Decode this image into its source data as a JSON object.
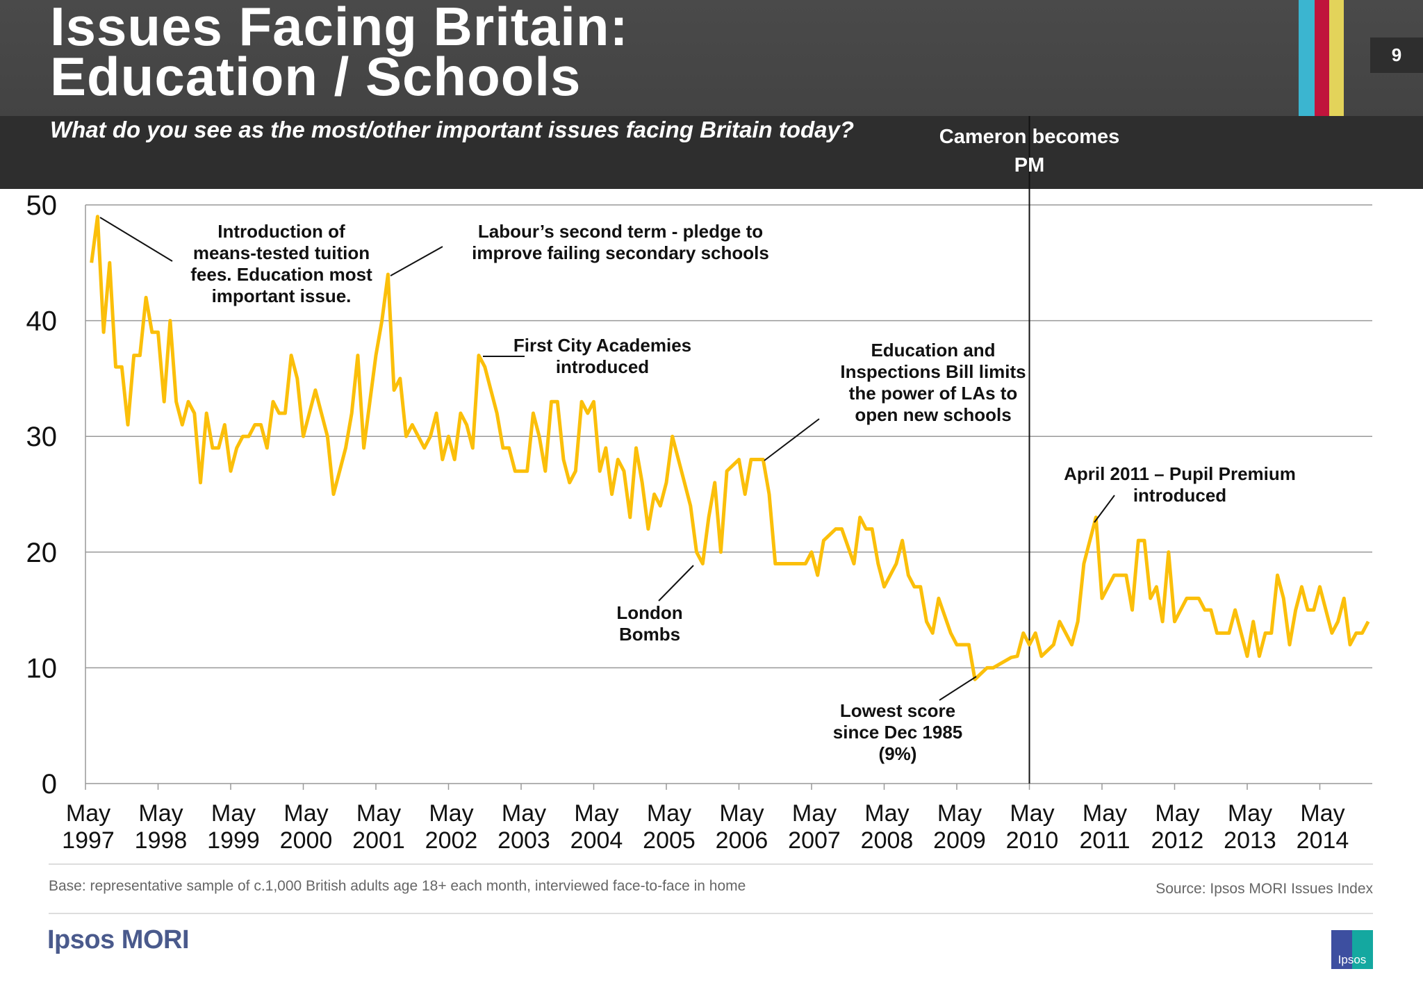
{
  "header": {
    "title_line1": "Issues Facing Britain:",
    "title_line2": "Education / Schools",
    "subtitle": "What do you see as the most/other important issues facing Britain today?",
    "page_number": "9",
    "brand_bars": [
      "#3bb5d0",
      "#c0143c",
      "#e3d35a"
    ]
  },
  "footer": {
    "base": "Base: representative sample of c.1,000 British adults age 18+ each month, interviewed face-to-face in home",
    "source": "Source: Ipsos MORI Issues Index",
    "logo_text": "Ipsos MORI",
    "badge_text": "Ipsos"
  },
  "chart_data": {
    "type": "line",
    "title": "",
    "xlabel": "",
    "ylabel": "",
    "ylim": [
      0,
      50
    ],
    "yticks": [
      0,
      10,
      20,
      30,
      40,
      50
    ],
    "grid": true,
    "line_color": "#fbbf0a",
    "xticks": [
      [
        "May",
        "1997"
      ],
      [
        "May",
        "1998"
      ],
      [
        "May",
        "1999"
      ],
      [
        "May",
        "2000"
      ],
      [
        "May",
        "2001"
      ],
      [
        "May",
        "2002"
      ],
      [
        "May",
        "2003"
      ],
      [
        "May",
        "2004"
      ],
      [
        "May",
        "2005"
      ],
      [
        "May",
        "2006"
      ],
      [
        "May",
        "2007"
      ],
      [
        "May",
        "2008"
      ],
      [
        "May",
        "2009"
      ],
      [
        "May",
        "2010"
      ],
      [
        "May",
        "2011"
      ],
      [
        "May",
        "2012"
      ],
      [
        "May",
        "2013"
      ],
      [
        "May",
        "2014"
      ]
    ],
    "series": [
      {
        "points": [
          [
            "1997-06",
            45
          ],
          [
            "1997-07",
            49
          ],
          [
            "1997-08",
            39
          ],
          [
            "1997-09",
            45
          ],
          [
            "1997-10",
            36
          ],
          [
            "1997-11",
            36
          ],
          [
            "1997-12",
            31
          ],
          [
            "1998-01",
            37
          ],
          [
            "1998-02",
            37
          ],
          [
            "1998-03",
            42
          ],
          [
            "1998-04",
            39
          ],
          [
            "1998-05",
            39
          ],
          [
            "1998-06",
            33
          ],
          [
            "1998-07",
            40
          ],
          [
            "1998-08",
            33
          ],
          [
            "1998-09",
            31
          ],
          [
            "1998-10",
            33
          ],
          [
            "1998-11",
            32
          ],
          [
            "1998-12",
            26
          ],
          [
            "1999-01",
            32
          ],
          [
            "1999-02",
            29
          ],
          [
            "1999-03",
            29
          ],
          [
            "1999-04",
            31
          ],
          [
            "1999-05",
            27
          ],
          [
            "1999-06",
            29
          ],
          [
            "1999-07",
            30
          ],
          [
            "1999-08",
            30
          ],
          [
            "1999-09",
            31
          ],
          [
            "1999-10",
            31
          ],
          [
            "1999-11",
            29
          ],
          [
            "1999-12",
            33
          ],
          [
            "2000-01",
            32
          ],
          [
            "2000-02",
            32
          ],
          [
            "2000-03",
            37
          ],
          [
            "2000-04",
            35
          ],
          [
            "2000-05",
            30
          ],
          [
            "2000-06",
            32
          ],
          [
            "2000-07",
            34
          ],
          [
            "2000-08",
            32
          ],
          [
            "2000-09",
            30
          ],
          [
            "2000-10",
            25
          ],
          [
            "2000-11",
            27
          ],
          [
            "2000-12",
            29
          ],
          [
            "2001-01",
            32
          ],
          [
            "2001-02",
            37
          ],
          [
            "2001-03",
            29
          ],
          [
            "2001-04",
            33
          ],
          [
            "2001-05",
            37
          ],
          [
            "2001-06",
            40
          ],
          [
            "2001-07",
            44
          ],
          [
            "2001-08",
            34
          ],
          [
            "2001-09",
            35
          ],
          [
            "2001-10",
            30
          ],
          [
            "2001-11",
            31
          ],
          [
            "2001-12",
            30
          ],
          [
            "2002-01",
            29
          ],
          [
            "2002-02",
            30
          ],
          [
            "2002-03",
            32
          ],
          [
            "2002-04",
            28
          ],
          [
            "2002-05",
            30
          ],
          [
            "2002-06",
            28
          ],
          [
            "2002-07",
            32
          ],
          [
            "2002-08",
            31
          ],
          [
            "2002-09",
            29
          ],
          [
            "2002-10",
            37
          ],
          [
            "2002-11",
            36
          ],
          [
            "2002-12",
            34
          ],
          [
            "2003-01",
            32
          ],
          [
            "2003-02",
            29
          ],
          [
            "2003-03",
            29
          ],
          [
            "2003-04",
            27
          ],
          [
            "2003-05",
            27
          ],
          [
            "2003-06",
            27
          ],
          [
            "2003-07",
            32
          ],
          [
            "2003-08",
            30
          ],
          [
            "2003-09",
            27
          ],
          [
            "2003-10",
            33
          ],
          [
            "2003-11",
            33
          ],
          [
            "2003-12",
            28
          ],
          [
            "2004-01",
            26
          ],
          [
            "2004-02",
            27
          ],
          [
            "2004-03",
            33
          ],
          [
            "2004-04",
            32
          ],
          [
            "2004-05",
            33
          ],
          [
            "2004-06",
            27
          ],
          [
            "2004-07",
            29
          ],
          [
            "2004-08",
            25
          ],
          [
            "2004-09",
            28
          ],
          [
            "2004-10",
            27
          ],
          [
            "2004-11",
            23
          ],
          [
            "2004-12",
            29
          ],
          [
            "2005-01",
            26
          ],
          [
            "2005-02",
            22
          ],
          [
            "2005-03",
            25
          ],
          [
            "2005-04",
            24
          ],
          [
            "2005-05",
            26
          ],
          [
            "2005-06",
            30
          ],
          [
            "2005-07",
            28
          ],
          [
            "2005-08",
            26
          ],
          [
            "2005-09",
            24
          ],
          [
            "2005-10",
            20
          ],
          [
            "2005-11",
            19
          ],
          [
            "2005-12",
            23
          ],
          [
            "2006-01",
            26
          ],
          [
            "2006-02",
            20
          ],
          [
            "2006-03",
            27
          ],
          [
            "2006-04",
            27.5
          ],
          [
            "2006-05",
            28
          ],
          [
            "2006-06",
            25
          ],
          [
            "2006-07",
            28
          ],
          [
            "2006-08",
            28
          ],
          [
            "2006-09",
            28
          ],
          [
            "2006-10",
            25
          ],
          [
            "2006-11",
            19
          ],
          [
            "2006-12",
            19
          ],
          [
            "2007-01",
            19
          ],
          [
            "2007-02",
            19
          ],
          [
            "2007-03",
            19
          ],
          [
            "2007-04",
            19
          ],
          [
            "2007-05",
            20
          ],
          [
            "2007-06",
            18
          ],
          [
            "2007-07",
            21
          ],
          [
            "2007-08",
            21.5
          ],
          [
            "2007-09",
            22
          ],
          [
            "2007-10",
            22
          ],
          [
            "2007-11",
            20.5
          ],
          [
            "2007-12",
            19
          ],
          [
            "2008-01",
            23
          ],
          [
            "2008-02",
            22
          ],
          [
            "2008-03",
            22
          ],
          [
            "2008-04",
            19
          ],
          [
            "2008-05",
            17
          ],
          [
            "2008-06",
            18
          ],
          [
            "2008-07",
            19
          ],
          [
            "2008-08",
            21
          ],
          [
            "2008-09",
            18
          ],
          [
            "2008-10",
            17
          ],
          [
            "2008-11",
            17
          ],
          [
            "2008-12",
            14
          ],
          [
            "2009-01",
            13
          ],
          [
            "2009-02",
            16
          ],
          [
            "2009-03",
            14.5
          ],
          [
            "2009-04",
            13
          ],
          [
            "2009-05",
            12
          ],
          [
            "2009-06",
            12
          ],
          [
            "2009-07",
            12
          ],
          [
            "2009-08",
            9
          ],
          [
            "2009-09",
            9.5
          ],
          [
            "2009-10",
            10
          ],
          [
            "2009-11",
            10
          ],
          [
            "2009-12",
            10.3
          ],
          [
            "2010-01",
            10.6
          ],
          [
            "2010-02",
            10.9
          ],
          [
            "2010-03",
            11
          ],
          [
            "2010-04",
            13
          ],
          [
            "2010-05",
            12
          ],
          [
            "2010-06",
            13
          ],
          [
            "2010-07",
            11
          ],
          [
            "2010-08",
            11.5
          ],
          [
            "2010-09",
            12
          ],
          [
            "2010-10",
            14
          ],
          [
            "2010-11",
            13
          ],
          [
            "2010-12",
            12
          ],
          [
            "2011-01",
            14
          ],
          [
            "2011-02",
            19
          ],
          [
            "2011-03",
            21
          ],
          [
            "2011-04",
            23
          ],
          [
            "2011-05",
            16
          ],
          [
            "2011-06",
            17
          ],
          [
            "2011-07",
            18
          ],
          [
            "2011-08",
            18
          ],
          [
            "2011-09",
            18
          ],
          [
            "2011-10",
            15
          ],
          [
            "2011-11",
            21
          ],
          [
            "2011-12",
            21
          ],
          [
            "2012-01",
            16
          ],
          [
            "2012-02",
            17
          ],
          [
            "2012-03",
            14
          ],
          [
            "2012-04",
            20
          ],
          [
            "2012-05",
            14
          ],
          [
            "2012-06",
            15
          ],
          [
            "2012-07",
            16
          ],
          [
            "2012-08",
            16
          ],
          [
            "2012-09",
            16
          ],
          [
            "2012-10",
            15
          ],
          [
            "2012-11",
            15
          ],
          [
            "2012-12",
            13
          ],
          [
            "2013-01",
            13
          ],
          [
            "2013-02",
            13
          ],
          [
            "2013-03",
            15
          ],
          [
            "2013-04",
            13
          ],
          [
            "2013-05",
            11
          ],
          [
            "2013-06",
            14
          ],
          [
            "2013-07",
            11
          ],
          [
            "2013-08",
            13
          ],
          [
            "2013-09",
            13
          ],
          [
            "2013-10",
            18
          ],
          [
            "2013-11",
            16
          ],
          [
            "2013-12",
            12
          ],
          [
            "2014-01",
            15
          ],
          [
            "2014-02",
            17
          ],
          [
            "2014-03",
            15
          ],
          [
            "2014-04",
            15
          ],
          [
            "2014-05",
            17
          ],
          [
            "2014-06",
            15
          ],
          [
            "2014-07",
            13
          ],
          [
            "2014-08",
            14
          ],
          [
            "2014-09",
            16
          ],
          [
            "2014-10",
            12
          ],
          [
            "2014-11",
            13
          ],
          [
            "2014-12",
            13
          ],
          [
            "2015-01",
            14
          ]
        ]
      }
    ],
    "event_line": {
      "date": "2010-05",
      "label_lines": [
        "Cameron becomes",
        "PM"
      ]
    },
    "annotations": [
      {
        "lines": [
          "Introduction of",
          "means-tested tuition",
          "fees. Education most",
          "important issue."
        ],
        "points_to": "1997-07"
      },
      {
        "lines": [
          "Labour’s second term - pledge to",
          "improve failing secondary schools"
        ],
        "points_to": "2001-07"
      },
      {
        "lines": [
          "First City Academies",
          "introduced"
        ],
        "points_to": "2002-10"
      },
      {
        "lines": [
          "Education and",
          "Inspections Bill limits",
          "the power of LAs to",
          "open new schools"
        ],
        "points_to": "2006-09"
      },
      {
        "lines": [
          "April 2011 – Pupil Premium",
          "introduced"
        ],
        "points_to": "2011-04"
      },
      {
        "lines": [
          "London",
          "Bombs"
        ],
        "points_to": "2005-11"
      },
      {
        "lines": [
          "Lowest score",
          "since Dec 1985",
          "(9%)"
        ],
        "points_to": "2009-08"
      }
    ]
  }
}
